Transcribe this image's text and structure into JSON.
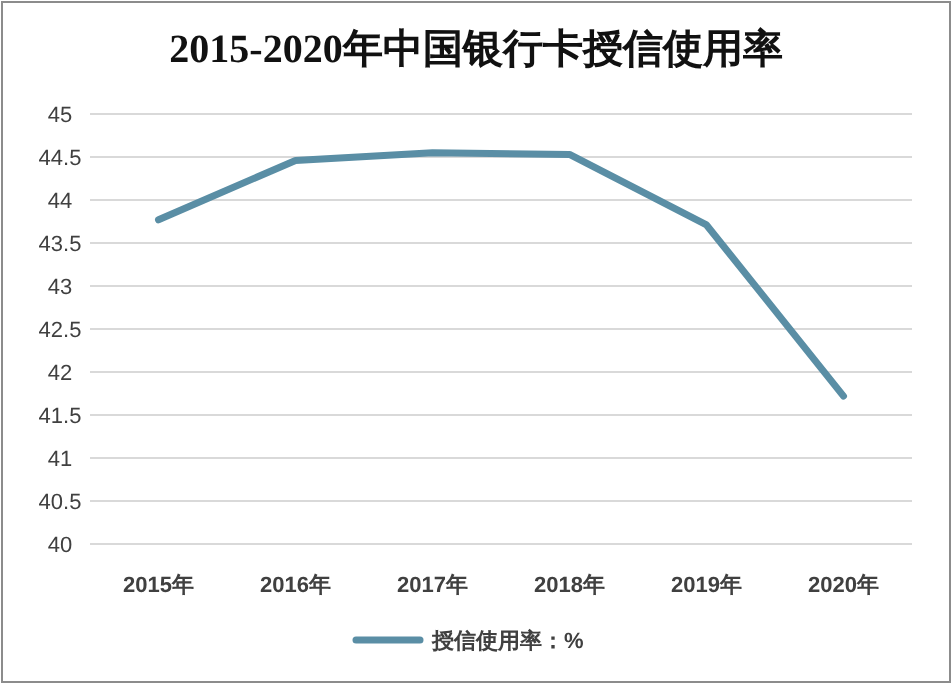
{
  "chart_data": {
    "type": "line",
    "title": "2015-2020年中国银行卡授信使用率",
    "categories": [
      "2015年",
      "2016年",
      "2017年",
      "2018年",
      "2019年",
      "2020年"
    ],
    "series": [
      {
        "name": "授信使用率：%",
        "color": "#5a8ea5",
        "values": [
          43.77,
          44.46,
          44.55,
          44.53,
          43.71,
          41.72
        ]
      }
    ],
    "ylim": [
      40,
      45
    ],
    "yticks": [
      40,
      40.5,
      41,
      41.5,
      42,
      42.5,
      43,
      43.5,
      44,
      44.5,
      45
    ],
    "grid": "y",
    "legend": "bottom",
    "marker": "none",
    "line_style": "solid"
  }
}
